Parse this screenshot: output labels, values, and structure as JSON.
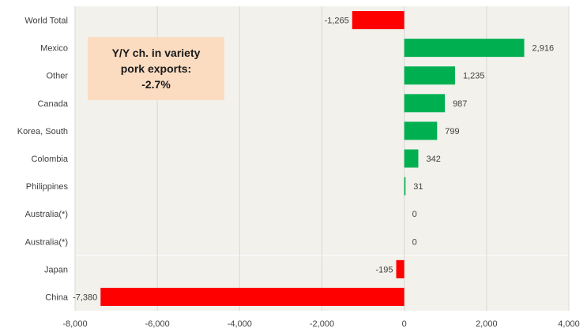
{
  "chart_data": {
    "type": "bar",
    "orientation": "horizontal",
    "categories": [
      "World Total",
      "Mexico",
      "Other",
      "Canada",
      "Korea, South",
      "Colombia",
      "Philippines",
      "Australia(*)",
      "Australia(*)",
      "Japan",
      "China"
    ],
    "values": [
      -1265,
      2916,
      1235,
      987,
      799,
      342,
      31,
      0,
      0,
      -195,
      -7380
    ],
    "data_labels": [
      "-1,265",
      "2,916",
      "1,235",
      "987",
      "799",
      "342",
      "31",
      "0",
      "0",
      "-195",
      "-7,380"
    ],
    "xlim": [
      -8000,
      4000
    ],
    "xticks": [
      -8000,
      -6000,
      -4000,
      -2000,
      0,
      2000,
      4000
    ],
    "xtick_labels": [
      "-8,000",
      "-6,000",
      "-4,000",
      "-2,000",
      "0",
      "2,000",
      "4,000"
    ],
    "grid": true,
    "colors": {
      "positive": "#00b050",
      "negative": "#ff0000",
      "plot_bg": "#f2f1ec",
      "grid": "#d9d9d9",
      "annotation_bg": "#fbdcc1"
    },
    "annotation": {
      "line1": "Y/Y ch. in variety",
      "line2": "pork exports:",
      "line3": "-2.7%"
    }
  }
}
